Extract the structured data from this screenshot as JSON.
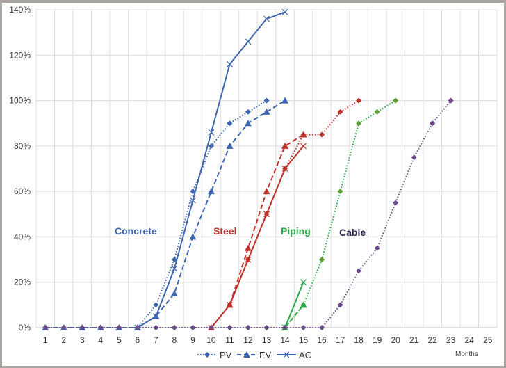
{
  "chart_data": {
    "type": "line",
    "xlabel": "Months",
    "ylabel": "",
    "x": [
      1,
      2,
      3,
      4,
      5,
      6,
      7,
      8,
      9,
      10,
      11,
      12,
      13,
      14,
      15,
      16,
      17,
      18,
      19,
      20,
      21,
      22,
      23,
      24,
      25
    ],
    "xlim": [
      1,
      25
    ],
    "ylim": [
      0,
      140
    ],
    "yticks": [
      0,
      20,
      40,
      60,
      80,
      100,
      120,
      140
    ],
    "ytick_labels": [
      "0%",
      "20%",
      "40%",
      "60%",
      "80%",
      "100%",
      "120%",
      "140%"
    ],
    "grid": true,
    "legend": {
      "placement": "bottom",
      "entries": [
        "PV",
        "EV",
        "AC"
      ]
    },
    "line_styles": {
      "PV": "dotted-diamond",
      "EV": "dashed-triangle",
      "AC": "solid-x"
    },
    "groups": [
      {
        "label": "Concrete",
        "color": "#3d64b0",
        "series": [
          {
            "name": "PV",
            "x": [
              1,
              2,
              3,
              4,
              5,
              6,
              7,
              8,
              9,
              10,
              11,
              12,
              13
            ],
            "values": [
              0,
              0,
              0,
              0,
              0,
              0,
              10,
              30,
              60,
              80,
              90,
              95,
              100
            ]
          },
          {
            "name": "EV",
            "x": [
              1,
              2,
              3,
              4,
              5,
              6,
              7,
              8,
              9,
              10,
              11,
              12,
              13,
              14
            ],
            "values": [
              0,
              0,
              0,
              0,
              0,
              0,
              5,
              15,
              40,
              60,
              80,
              90,
              95,
              100
            ]
          },
          {
            "name": "AC",
            "x": [
              6,
              7,
              8,
              9,
              10,
              11,
              12,
              13,
              14
            ],
            "values": [
              0,
              5,
              26,
              56,
              86,
              116,
              126,
              136,
              139
            ]
          }
        ]
      },
      {
        "label": "Steel",
        "color": "#c0302b",
        "series": [
          {
            "name": "PV",
            "x": [
              1,
              2,
              3,
              4,
              5,
              6,
              7,
              8,
              9,
              10,
              11,
              12,
              13,
              14,
              15,
              16,
              17,
              18
            ],
            "values": [
              0,
              0,
              0,
              0,
              0,
              0,
              0,
              0,
              0,
              0,
              10,
              30,
              50,
              70,
              85,
              85,
              95,
              100
            ]
          },
          {
            "name": "EV",
            "x": [
              10,
              11,
              12,
              13,
              14,
              15
            ],
            "values": [
              0,
              10,
              35,
              60,
              80,
              85
            ]
          },
          {
            "name": "AC",
            "x": [
              10,
              11,
              12,
              13,
              14,
              15
            ],
            "values": [
              0,
              10,
              30,
              50,
              70,
              80
            ]
          }
        ]
      },
      {
        "label": "Piping",
        "color": "#2aaa48",
        "marker_color": "#5e9e34",
        "series": [
          {
            "name": "PV",
            "x": [
              1,
              2,
              3,
              4,
              5,
              6,
              7,
              8,
              9,
              10,
              11,
              12,
              13,
              14,
              15,
              16,
              17,
              18,
              19,
              20
            ],
            "values": [
              0,
              0,
              0,
              0,
              0,
              0,
              0,
              0,
              0,
              0,
              0,
              0,
              0,
              0,
              10,
              30,
              60,
              90,
              95,
              100
            ]
          },
          {
            "name": "EV",
            "x": [
              14,
              15
            ],
            "values": [
              0,
              10
            ]
          },
          {
            "name": "AC",
            "x": [
              14,
              15
            ],
            "values": [
              0,
              20
            ]
          }
        ]
      },
      {
        "label": "Cable",
        "color": "#6c4a8c",
        "label_color": "#2b2858",
        "series": [
          {
            "name": "PV",
            "x": [
              1,
              2,
              3,
              4,
              5,
              6,
              7,
              8,
              9,
              10,
              11,
              12,
              13,
              14,
              15,
              16,
              17,
              18,
              19,
              20,
              21,
              22,
              23
            ],
            "values": [
              0,
              0,
              0,
              0,
              0,
              0,
              0,
              0,
              0,
              0,
              0,
              0,
              0,
              0,
              0,
              0,
              10,
              25,
              35,
              55,
              75,
              90,
              100
            ]
          }
        ]
      }
    ],
    "legend_color": "#3d64b0"
  }
}
